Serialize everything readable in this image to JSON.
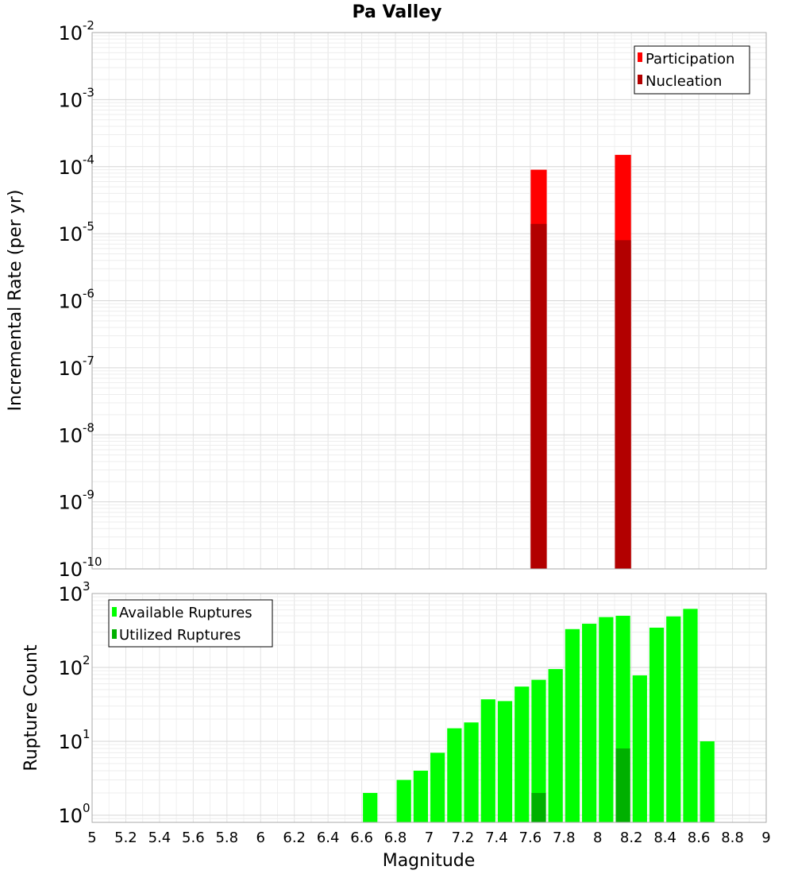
{
  "chart_data": [
    {
      "type": "bar",
      "title": "Pa Valley",
      "xlabel": "",
      "ylabel": "Incremental Rate (per yr)",
      "yscale": "log",
      "ylim": [
        1e-10,
        0.01
      ],
      "xlim": [
        5,
        9
      ],
      "grid": true,
      "legend_position": "top-right",
      "y_tick_labels": [
        {
          "base": "10",
          "exp": "-10"
        },
        {
          "base": "10",
          "exp": "-9"
        },
        {
          "base": "10",
          "exp": "-8"
        },
        {
          "base": "10",
          "exp": "-7"
        },
        {
          "base": "10",
          "exp": "-6"
        },
        {
          "base": "10",
          "exp": "-5"
        },
        {
          "base": "10",
          "exp": "-4"
        },
        {
          "base": "10",
          "exp": "-3"
        },
        {
          "base": "10",
          "exp": "-2"
        }
      ],
      "series": [
        {
          "name": "Participation",
          "color": "#ff0000",
          "x": [
            7.65,
            8.15
          ],
          "values": [
            9e-05,
            0.00015
          ]
        },
        {
          "name": "Nucleation",
          "color": "#b20000",
          "x": [
            7.65,
            8.15
          ],
          "values": [
            1.4e-05,
            8e-06
          ]
        }
      ]
    },
    {
      "type": "bar",
      "title": "",
      "xlabel": "Magnitude",
      "ylabel": "Rupture Count",
      "yscale": "log",
      "ylim": [
        0.8,
        1000
      ],
      "xlim": [
        5,
        9
      ],
      "grid": true,
      "legend_position": "top-left",
      "x_tick_labels": [
        "5",
        "5.2",
        "5.4",
        "5.6",
        "5.8",
        "6",
        "6.2",
        "6.4",
        "6.6",
        "6.8",
        "7",
        "7.2",
        "7.4",
        "7.6",
        "7.8",
        "8",
        "8.2",
        "8.4",
        "8.6",
        "8.8",
        "9"
      ],
      "y_tick_labels": [
        {
          "base": "10",
          "exp": "0"
        },
        {
          "base": "10",
          "exp": "1"
        },
        {
          "base": "10",
          "exp": "2"
        },
        {
          "base": "10",
          "exp": "3"
        }
      ],
      "series": [
        {
          "name": "Available Ruptures",
          "color": "#00ff00",
          "x": [
            6.65,
            6.85,
            6.95,
            7.05,
            7.15,
            7.25,
            7.35,
            7.45,
            7.55,
            7.65,
            7.75,
            7.85,
            7.95,
            8.05,
            8.15,
            8.25,
            8.35,
            8.45,
            8.55,
            8.65
          ],
          "values": [
            2,
            3,
            4,
            7,
            15,
            18,
            37,
            35,
            55,
            68,
            95,
            330,
            390,
            480,
            500,
            78,
            345,
            490,
            620,
            10
          ]
        },
        {
          "name": "Utilized Ruptures",
          "color": "#00b000",
          "x": [
            7.65,
            8.15
          ],
          "values": [
            2,
            8
          ]
        }
      ]
    }
  ]
}
